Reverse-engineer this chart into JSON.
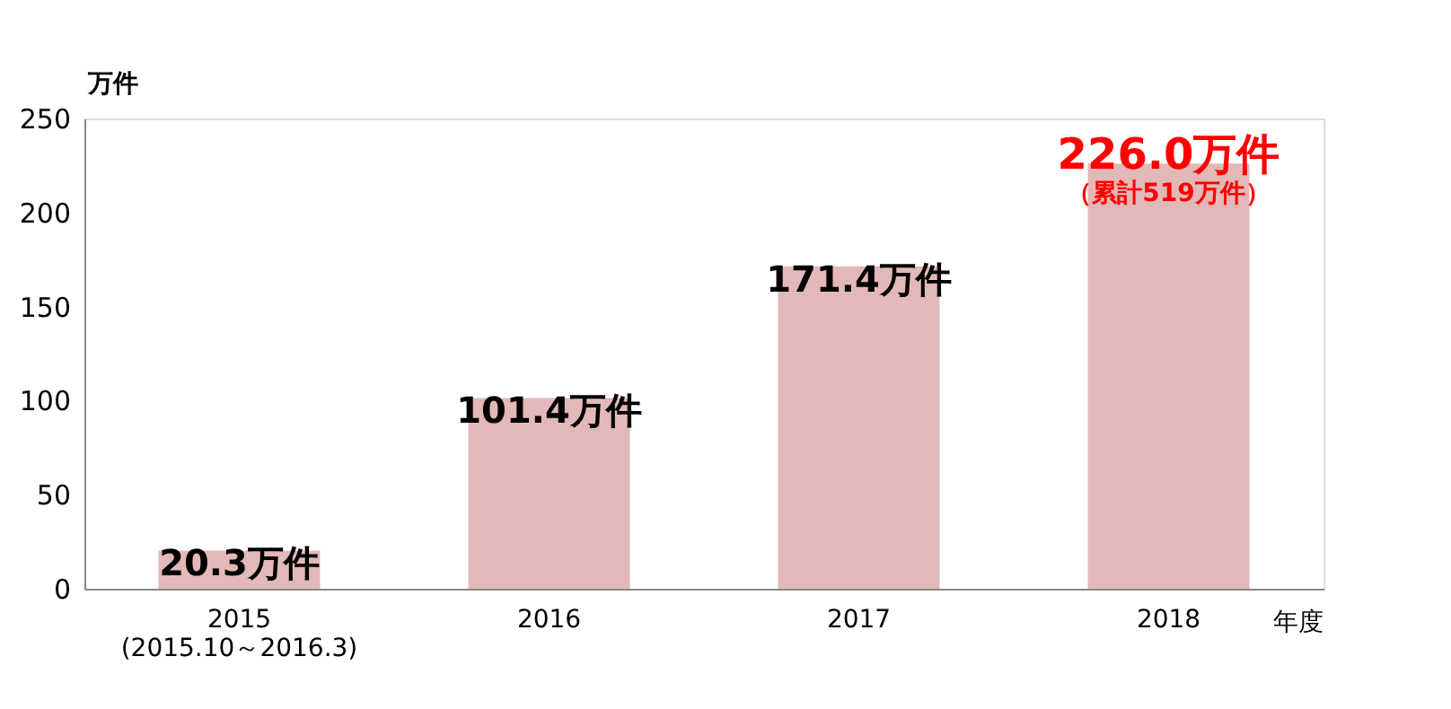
{
  "chart_data": {
    "type": "bar",
    "categories": [
      "2015\n(2015.10～2016.3)",
      "2016",
      "2017",
      "2018"
    ],
    "values": [
      20.3,
      101.4,
      171.4,
      226.0
    ],
    "color": "#e3b8b8",
    "value_labels": [
      "20.3万件",
      "101.4万件",
      "171.4万件",
      null
    ],
    "annotations": [
      {
        "text": "226.0万件",
        "x": "2018",
        "y": 226.0
      },
      {
        "text": "（累計519万件）",
        "x": "2018",
        "y": 226.0
      }
    ],
    "ylabel": "万件",
    "xlabel": "年度",
    "ylim": [
      0,
      250
    ],
    "yticks": [
      0,
      50,
      100,
      150,
      200,
      250
    ],
    "grid": false
  }
}
